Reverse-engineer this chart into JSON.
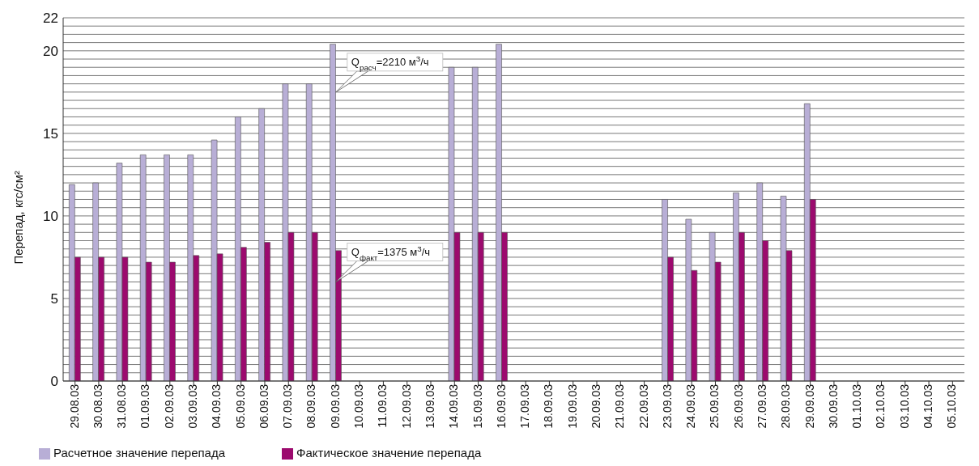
{
  "chart_data": {
    "type": "bar",
    "ylabel": "Перепад, кгс/см²",
    "categories": [
      "29.08.03",
      "30.08.03",
      "31.08.03",
      "01.09.03",
      "02.09.03",
      "03.09.03",
      "04.09.03",
      "05.09.03",
      "06.09.03",
      "07.09.03",
      "08.09.03",
      "09.09.03",
      "10.09.03",
      "11.09.03",
      "12.09.03",
      "13.09.03",
      "14.09.03",
      "15.09.03",
      "16.09.03",
      "17.09.03",
      "18.09.03",
      "19.09.03",
      "20.09.03",
      "21.09.03",
      "22.09.03",
      "23.09.03",
      "24.09.03",
      "25.09.03",
      "26.09.03",
      "27.09.03",
      "28.09.03",
      "29.09.03",
      "30.09.03",
      "01.10.03",
      "02.10.03",
      "03.10.03",
      "04.10.03",
      "05.10.03"
    ],
    "series": [
      {
        "name": "Расчетное значение перепада",
        "color": "#b8aed6",
        "values": [
          11.9,
          12.0,
          13.2,
          13.7,
          13.7,
          13.7,
          14.6,
          16.0,
          16.5,
          18.0,
          18.0,
          20.4,
          null,
          null,
          null,
          null,
          19.0,
          19.0,
          20.4,
          null,
          null,
          null,
          null,
          null,
          null,
          11.0,
          9.8,
          9.0,
          11.4,
          12.0,
          11.2,
          16.8,
          null,
          null,
          null,
          null,
          null,
          null
        ]
      },
      {
        "name": "Фактическое значение перепада",
        "color": "#9c0a6e",
        "values": [
          7.5,
          7.5,
          7.5,
          7.2,
          7.2,
          7.6,
          7.7,
          8.1,
          8.4,
          9.0,
          9.0,
          7.9,
          null,
          null,
          null,
          null,
          9.0,
          9.0,
          9.0,
          null,
          null,
          null,
          null,
          null,
          null,
          7.5,
          6.7,
          7.2,
          9.0,
          8.5,
          7.9,
          11.0,
          null,
          null,
          null,
          null,
          null,
          null
        ]
      }
    ],
    "ylim": [
      0,
      22
    ],
    "yticks": [
      0,
      {
        "value": 0.5,
        "label": null
      },
      {
        "value": 1,
        "label": null
      },
      {
        "value": 1.5,
        "label": null
      },
      {
        "value": 2,
        "label": null
      },
      {
        "value": 2.5,
        "label": null
      },
      {
        "value": 3,
        "label": null
      },
      {
        "value": 3.5,
        "label": null
      },
      {
        "value": 4,
        "label": null
      },
      {
        "value": 4.5,
        "label": null
      },
      5,
      {
        "value": 5.5,
        "label": null
      },
      {
        "value": 6,
        "label": null
      },
      {
        "value": 6.5,
        "label": null
      },
      {
        "value": 7,
        "label": null
      },
      {
        "value": 7.5,
        "label": null
      },
      {
        "value": 8,
        "label": null
      },
      {
        "value": 8.5,
        "label": null
      },
      {
        "value": 9,
        "label": null
      },
      {
        "value": 9.5,
        "label": null
      },
      10,
      {
        "value": 10.5,
        "label": null
      },
      {
        "value": 11,
        "label": null
      },
      {
        "value": 11.5,
        "label": null
      },
      {
        "value": 12,
        "label": null
      },
      {
        "value": 12.5,
        "label": null
      },
      {
        "value": 13,
        "label": null
      },
      {
        "value": 13.5,
        "label": null
      },
      {
        "value": 14,
        "label": null
      },
      {
        "value": 14.5,
        "label": null
      },
      15,
      {
        "value": 15.5,
        "label": null
      },
      {
        "value": 16,
        "label": null
      },
      {
        "value": 16.5,
        "label": null
      },
      {
        "value": 17,
        "label": null
      },
      {
        "value": 17.5,
        "label": null
      },
      {
        "value": 18,
        "label": null
      },
      {
        "value": 18.5,
        "label": null
      },
      {
        "value": 19,
        "label": null
      },
      {
        "value": 19.5,
        "label": null
      },
      20,
      {
        "value": 20.5,
        "label": null
      },
      {
        "value": 21,
        "label": null
      },
      {
        "value": 21.5,
        "label": null
      },
      22
    ],
    "grid": "y",
    "legend": "bottom left",
    "annotations": [
      {
        "text": "Q$_{расч}$=2210 м$^{3}$/ч",
        "x": "09.09.03",
        "y": 17.5
      },
      {
        "text": "Q$_{факт}$=1375 м$^{3}$/ч",
        "x": "09.09.03",
        "y": 6.0
      }
    ]
  }
}
